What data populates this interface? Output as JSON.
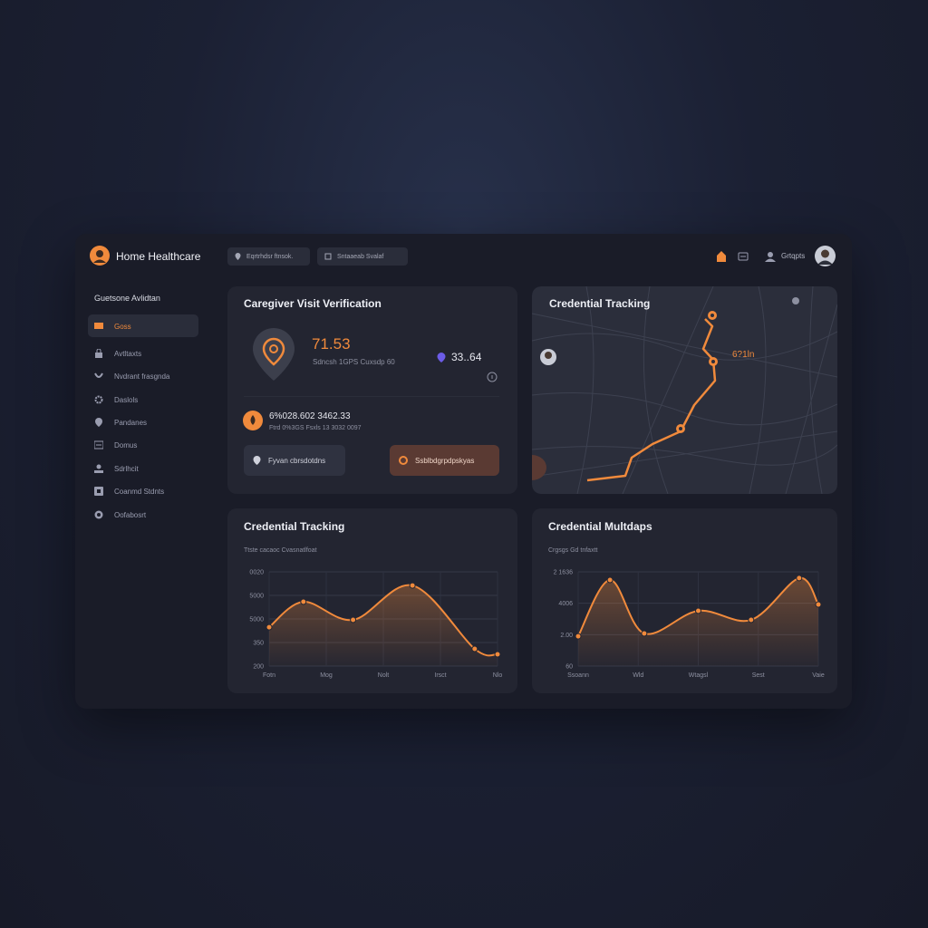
{
  "header": {
    "title": "Home Healthcare",
    "search": [
      "Eqrtrhdsr ftnsok.",
      "Sntaaeab Svalaf"
    ],
    "user": "Grtqpts"
  },
  "sidebar": {
    "title": "Guetsone Avlidtan",
    "items": [
      "Goss",
      "Avtltaxts",
      "Nvdrant frasgnda",
      "Daslols",
      "Pandanes",
      "Domus",
      "Sdrlhcit",
      "Coanmd Stdnts",
      "Oofabosrt"
    ]
  },
  "verification": {
    "title": "Caregiver Visit Verification",
    "value": "71.53",
    "caption": "Sdncsh 1GPS Cuxsdp 60",
    "secondary": "33..64",
    "record": {
      "value": "6%028.602 3462.33",
      "caption": "Ftrd 0%3GS Fsxls 13 3032 0097"
    },
    "buttons": [
      "Fyvan cbrsdotdns",
      "Ssblbdgrpdpskyas"
    ]
  },
  "map": {
    "title": "Credential Tracking",
    "label": "6?1ln"
  },
  "chart_data": [
    {
      "type": "line",
      "title": "Credential Tracking",
      "subtitle": "Ttste cacaoc Cvasnatlfoat",
      "color": "#f08a3c",
      "area": true,
      "grid": true,
      "x": [
        0,
        0.6,
        1.47,
        2.51,
        3.6,
        4.0
      ],
      "values": [
        1.65,
        2.73,
        1.96,
        3.42,
        0.73,
        0.5
      ],
      "xlim": [
        0,
        4
      ],
      "xticks": [
        {
          "value": 0,
          "label": "Fotn"
        },
        {
          "value": 1,
          "label": "Mog"
        },
        {
          "value": 2,
          "label": "Nolt"
        },
        {
          "value": 3,
          "label": "Irsct"
        },
        {
          "value": 4,
          "label": "Nlo"
        }
      ],
      "ylim": [
        0,
        4
      ],
      "yticks": [
        {
          "value": 0,
          "label": "200"
        },
        {
          "value": 1,
          "label": "350"
        },
        {
          "value": 2,
          "label": "5000"
        },
        {
          "value": 3,
          "label": "5000"
        },
        {
          "value": 4,
          "label": "0020"
        }
      ]
    },
    {
      "type": "line",
      "title": "Credential Multdaps",
      "subtitle": "Crgsgs Gd tnfaxtt",
      "color": "#f08a3c",
      "area": true,
      "grid": true,
      "x": [
        0,
        0.53,
        1.1,
        2.0,
        2.88,
        3.68,
        4.0
      ],
      "values": [
        0.95,
        2.74,
        1.04,
        1.76,
        1.47,
        2.8,
        1.96
      ],
      "xlim": [
        0,
        4
      ],
      "xticks": [
        {
          "value": 0,
          "label": "Ssoann"
        },
        {
          "value": 1,
          "label": "Wld"
        },
        {
          "value": 2,
          "label": "Wtagsl"
        },
        {
          "value": 3,
          "label": "Sest"
        },
        {
          "value": 4,
          "label": "Vaie"
        }
      ],
      "ylim": [
        0,
        3
      ],
      "yticks": [
        {
          "value": 0,
          "label": "60"
        },
        {
          "value": 1,
          "label": "2.00"
        },
        {
          "value": 2,
          "label": "4006"
        },
        {
          "value": 3,
          "label": "2 1636"
        }
      ]
    }
  ]
}
